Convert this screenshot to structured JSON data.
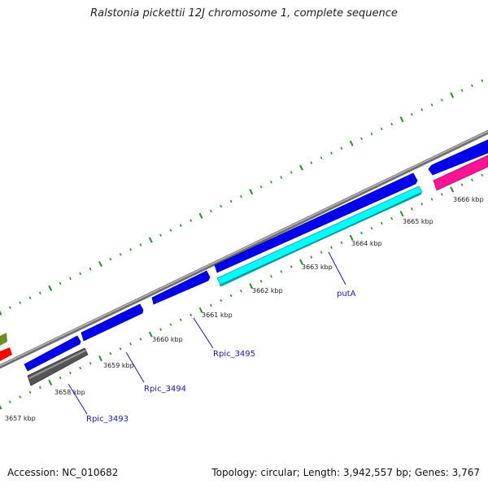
{
  "title": "Ralstonia pickettii 12J chromosome 1, complete sequence",
  "footer": {
    "accession": "Accession: NC_010682",
    "summary": "Topology: circular; Length: 3,942,557 bp; Genes: 3,767"
  },
  "ruler": {
    "labels": [
      "3657 kbp",
      "3658 kbp",
      "3659 kbp",
      "3660 kbp",
      "3661 kbp",
      "3662 kbp",
      "3663 kbp",
      "3664 kbp",
      "3665 kbp",
      "3666 kbp"
    ]
  },
  "genes": {
    "labels": [
      "Rpic_3493",
      "Rpic_3494",
      "Rpic_3495",
      "putA"
    ]
  },
  "colors": {
    "forward_strand": "#0000ee",
    "reverse_strand_cyan": "#00ffff",
    "reverse_strand_gray": "#606060",
    "pink": "#ff1493",
    "red": "#ff0000",
    "olive": "#6b8e23",
    "backbone": "#808080",
    "ticks": "#2e8b2e"
  }
}
